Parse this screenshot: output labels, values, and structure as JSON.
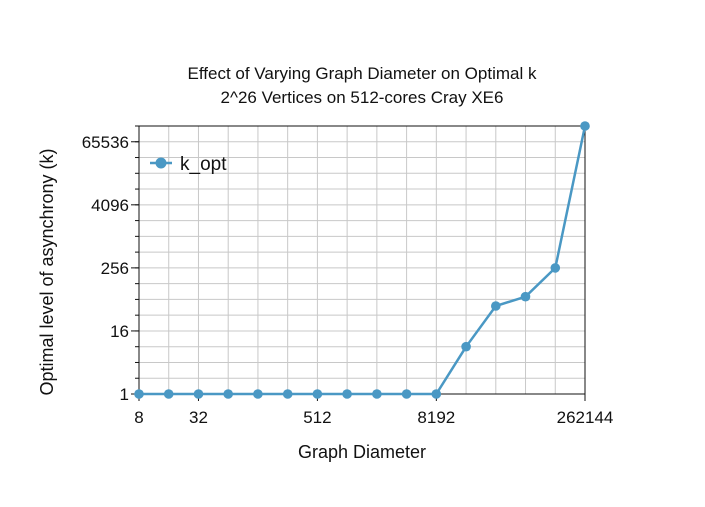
{
  "chart_data": {
    "type": "line",
    "title": "Effect of Varying Graph Diameter on Optimal k",
    "subtitle": "2^26 Vertices on 512-cores Cray XE6",
    "xlabel": "Graph Diameter",
    "ylabel": "Optimal level of asynchrony (k)",
    "x_scale": "log2",
    "y_scale": "log2",
    "xlim": [
      8,
      262144
    ],
    "ylim": [
      1,
      131072
    ],
    "x_tick_values": [
      8,
      32,
      512,
      8192,
      262144
    ],
    "x_tick_labels": [
      "8",
      "32",
      "512",
      "8192",
      "262144"
    ],
    "y_tick_values": [
      1,
      16,
      256,
      4096,
      65536
    ],
    "y_tick_labels": [
      "1",
      "16",
      "256",
      "4096",
      "65536"
    ],
    "grid": true,
    "legend": "top-left",
    "series": [
      {
        "name": "k_opt",
        "color": "#4a98c4",
        "x": [
          8,
          16,
          32,
          64,
          128,
          256,
          512,
          1024,
          2048,
          4096,
          8192,
          16384,
          32768,
          65536,
          131072,
          262144
        ],
        "values": [
          1,
          1,
          1,
          1,
          1,
          1,
          1,
          1,
          1,
          1,
          1,
          8,
          48,
          72,
          256,
          131072
        ]
      }
    ]
  }
}
